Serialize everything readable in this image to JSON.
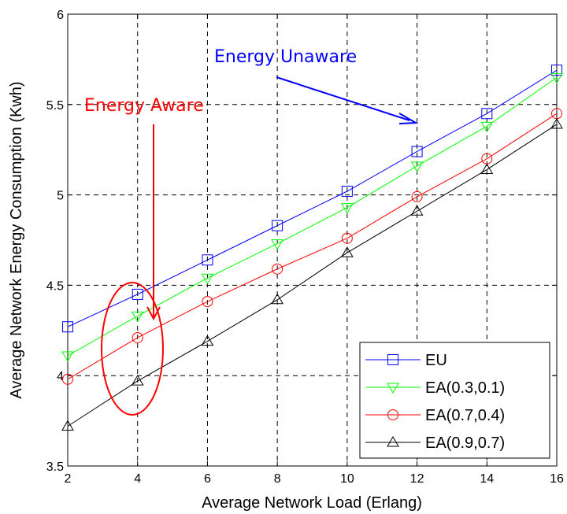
{
  "chart_data": {
    "type": "line",
    "title": "",
    "xlabel": "Average Network Load (Erlang)",
    "ylabel": "Average Network Energy Consumption (Kwh)",
    "xlim": [
      2,
      16
    ],
    "ylim": [
      3.5,
      6
    ],
    "xticks": [
      "2",
      "4",
      "6",
      "8",
      "10",
      "12",
      "14",
      "16"
    ],
    "yticks": [
      "3.5",
      "4",
      "4.5",
      "5",
      "5.5",
      "6"
    ],
    "grid": true,
    "legend_position": "bottom-right",
    "x": [
      2,
      4,
      6,
      8,
      10,
      12,
      14,
      16
    ],
    "series": [
      {
        "name": "EU",
        "color": "#0000ff",
        "marker": "square",
        "values": [
          4.27,
          4.45,
          4.64,
          4.83,
          5.02,
          5.24,
          5.45,
          5.69
        ]
      },
      {
        "name": "EA(0.3,0.1)",
        "color": "#00ff00",
        "marker": "triangle-down",
        "values": [
          4.11,
          4.33,
          4.54,
          4.73,
          4.93,
          5.16,
          5.38,
          5.65
        ]
      },
      {
        "name": "EA(0.7,0.4)",
        "color": "#ff0000",
        "marker": "circle",
        "values": [
          3.98,
          4.21,
          4.41,
          4.59,
          4.76,
          4.99,
          5.2,
          5.45
        ]
      },
      {
        "name": "EA(0.9,0.7)",
        "color": "#000000",
        "marker": "triangle-up",
        "values": [
          3.72,
          3.97,
          4.19,
          4.42,
          4.68,
          4.91,
          5.14,
          5.39
        ]
      }
    ],
    "annotations": [
      {
        "text": "Energy Unaware",
        "color": "#0000ff"
      },
      {
        "text": "Energy Aware",
        "color": "#ff0000"
      }
    ]
  }
}
